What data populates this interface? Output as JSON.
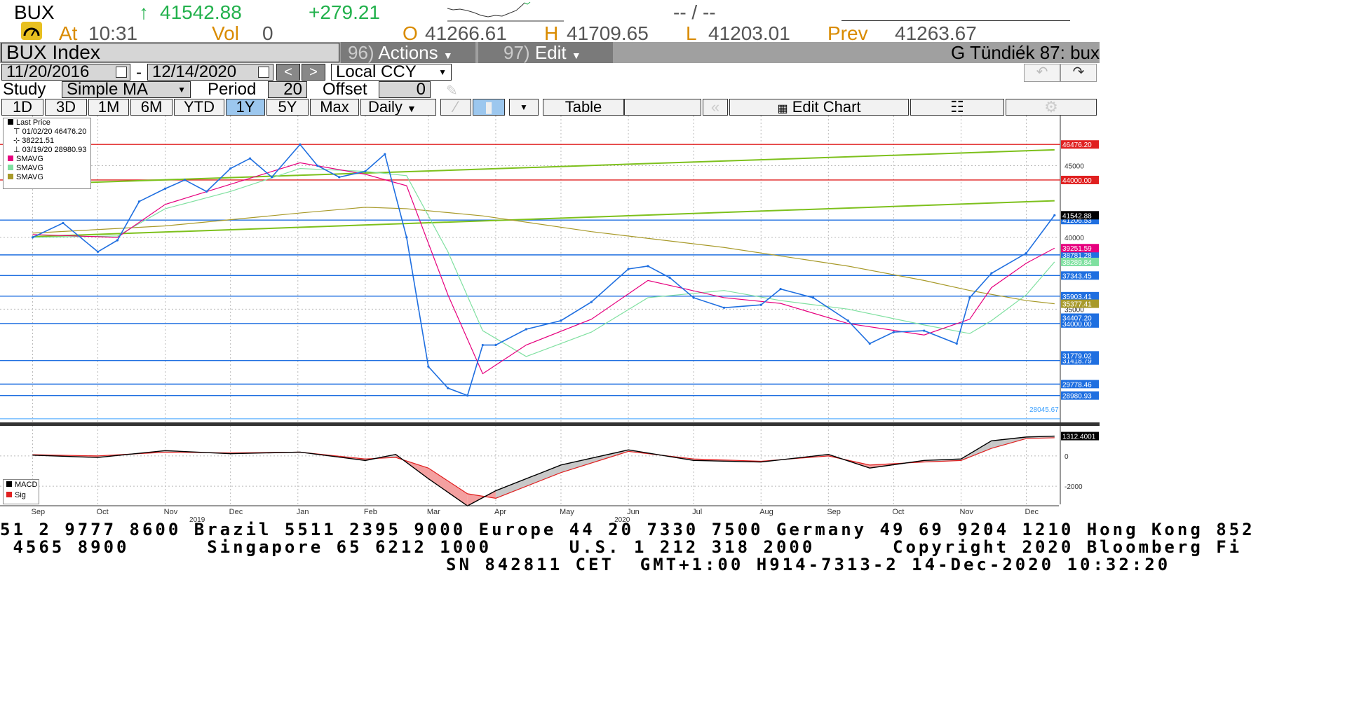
{
  "header": {
    "ticker": "BUX",
    "arrow": "↑",
    "last": "41542.88",
    "change": "+279.21",
    "dashes": "-- / --",
    "at_label": "At",
    "time": "10:31",
    "vol_label": "Vol",
    "vol": "0",
    "open_label": "O",
    "open": "41266.61",
    "high_label": "H",
    "high": "41709.65",
    "low_label": "L",
    "low": "41203.01",
    "prev_label": "Prev",
    "prev": "41263.67"
  },
  "toolbar": {
    "security": "BUX Index",
    "actions_num": "96)",
    "actions": "Actions",
    "edit_num": "97)",
    "edit": "Edit",
    "user": "G Tündiék 87: bux"
  },
  "dates": {
    "start": "11/20/2016",
    "sep": "-",
    "end": "12/14/2020",
    "prev_btn": "<",
    "next_btn": ">",
    "currency": "Local CCY"
  },
  "study": {
    "label": "Study",
    "value": "Simple MA",
    "period_label": "Period",
    "period": "20",
    "offset_label": "Offset",
    "offset": "0"
  },
  "ranges": {
    "items": [
      "1D",
      "3D",
      "1M",
      "6M",
      "YTD",
      "1Y",
      "5Y",
      "Max"
    ],
    "selected": "1Y",
    "frequency": "Daily",
    "table": "Table",
    "edit_chart": "Edit Chart"
  },
  "legend": {
    "title": "Last Price",
    "high_line": "01/02/20 46476.20",
    "avg_line": "38221.51",
    "low_line": "03/19/20 28980.93",
    "smas": [
      "SMAVG",
      "SMAVG",
      "SMAVG"
    ],
    "colors": {
      "sma1": "#e6007e",
      "sma2": "#7fe0a0",
      "sma3": "#a89a2a"
    }
  },
  "chart_data": [
    {
      "type": "line",
      "title": "BUX Index",
      "ylim": [
        27500,
        48000
      ],
      "y_ticks": [
        35000,
        40000,
        45000
      ],
      "y_ticks_labels": [
        "35000",
        "40000",
        "45000"
      ],
      "month_ticks": [
        "Sep",
        "Oct",
        "Nov",
        "Dec",
        "Jan",
        "Feb",
        "Mar",
        "Apr",
        "May",
        "Jun",
        "Jul",
        "Aug",
        "Sep",
        "Oct",
        "Nov",
        "Dec"
      ],
      "year_labels": [
        "2019",
        "2020"
      ],
      "grid": true,
      "series": [
        {
          "name": "Last Price",
          "color": "#1f6fe0",
          "x": [
            "2019-09-01",
            "2019-09-15",
            "2019-10-01",
            "2019-10-10",
            "2019-10-20",
            "2019-11-01",
            "2019-11-10",
            "2019-11-20",
            "2019-12-01",
            "2019-12-10",
            "2019-12-20",
            "2020-01-02",
            "2020-01-10",
            "2020-01-20",
            "2020-02-01",
            "2020-02-10",
            "2020-02-20",
            "2020-03-01",
            "2020-03-10",
            "2020-03-19",
            "2020-03-26",
            "2020-04-01",
            "2020-04-15",
            "2020-05-01",
            "2020-05-15",
            "2020-06-01",
            "2020-06-10",
            "2020-06-20",
            "2020-07-01",
            "2020-07-15",
            "2020-08-01",
            "2020-08-10",
            "2020-08-25",
            "2020-09-10",
            "2020-09-20",
            "2020-10-01",
            "2020-10-15",
            "2020-10-30",
            "2020-11-05",
            "2020-11-15",
            "2020-12-01",
            "2020-12-14"
          ],
          "values": [
            40000,
            41000,
            39000,
            39800,
            42500,
            43400,
            44000,
            43200,
            44800,
            45500,
            44200,
            46476,
            45000,
            44200,
            44600,
            45800,
            40000,
            31000,
            29500,
            28981,
            32500,
            32500,
            33600,
            34200,
            35500,
            37800,
            38000,
            37200,
            35800,
            35100,
            35300,
            36400,
            35800,
            34200,
            32600,
            33400,
            33500,
            32600,
            35800,
            37500,
            38900,
            41543
          ]
        },
        {
          "name": "SMAVG",
          "color": "#e6007e",
          "x": [
            "2019-09-01",
            "2019-10-10",
            "2019-11-01",
            "2019-12-01",
            "2020-01-02",
            "2020-02-01",
            "2020-02-20",
            "2020-03-10",
            "2020-03-26",
            "2020-04-15",
            "2020-05-15",
            "2020-06-10",
            "2020-07-15",
            "2020-08-10",
            "2020-09-10",
            "2020-10-15",
            "2020-11-05",
            "2020-11-15",
            "2020-12-01",
            "2020-12-14"
          ],
          "values": [
            40200,
            40000,
            42300,
            43700,
            45200,
            44400,
            43600,
            36000,
            30500,
            32500,
            34300,
            37000,
            35800,
            35400,
            34000,
            33200,
            34300,
            36500,
            38200,
            39252
          ]
        },
        {
          "name": "SMAVG",
          "color": "#7fe0a0",
          "x": [
            "2019-09-01",
            "2019-10-10",
            "2019-11-01",
            "2019-12-01",
            "2020-01-02",
            "2020-02-01",
            "2020-02-20",
            "2020-03-10",
            "2020-03-26",
            "2020-04-15",
            "2020-05-15",
            "2020-06-10",
            "2020-07-15",
            "2020-08-10",
            "2020-09-10",
            "2020-10-15",
            "2020-11-05",
            "2020-11-15",
            "2020-12-01",
            "2020-12-14"
          ],
          "values": [
            40000,
            40100,
            42000,
            43200,
            44800,
            44600,
            44300,
            39000,
            33500,
            31700,
            33400,
            35800,
            36300,
            35600,
            35000,
            33900,
            33300,
            34200,
            36000,
            38290
          ]
        },
        {
          "name": "SMAVG",
          "color": "#a89a2a",
          "x": [
            "2019-09-01",
            "2019-11-01",
            "2020-01-02",
            "2020-02-01",
            "2020-02-20",
            "2020-03-26",
            "2020-05-15",
            "2020-07-15",
            "2020-09-10",
            "2020-10-15",
            "2020-11-05",
            "2020-12-01",
            "2020-12-14"
          ],
          "values": [
            40300,
            40800,
            41700,
            42100,
            42000,
            41500,
            40400,
            39300,
            38000,
            37000,
            36300,
            35600,
            35377
          ]
        }
      ],
      "horizontal_levels": [
        {
          "value": 46476.2,
          "label": "46476.20",
          "color": "#e02020",
          "badge": "red"
        },
        {
          "value": 44000.0,
          "label": "44000.00",
          "color": "#e02020",
          "badge": "red"
        },
        {
          "value": 41206.53,
          "label": "41206.53",
          "color": "#1f6fe0",
          "badge": "blue"
        },
        {
          "value": 38781.28,
          "label": "38781.28",
          "color": "#1f6fe0",
          "badge": "blue"
        },
        {
          "value": 37343.45,
          "label": "37343.45",
          "color": "#1f6fe0",
          "badge": "blue"
        },
        {
          "value": 35903.41,
          "label": "35903.41",
          "color": "#1f6fe0",
          "badge": "blue"
        },
        {
          "value": 34000.0,
          "label": "34000.00",
          "color": "#1f6fe0",
          "badge": "blue"
        },
        {
          "value": 31418.79,
          "label": "31418.79",
          "color": "#1f6fe0",
          "badge": "blue"
        },
        {
          "value": 29778.46,
          "label": "29778.46",
          "color": "#1f6fe0",
          "badge": "blue"
        },
        {
          "value": 28980.93,
          "label": "28980.93",
          "color": "#1f6fe0",
          "badge": "blue"
        },
        {
          "value": 28045.67,
          "label": "28045.67",
          "color": "#3aa0ff",
          "badge": "text"
        }
      ],
      "extra_badges": [
        {
          "value": 41542.88,
          "label": "41542.88",
          "color": "#000000"
        },
        {
          "value": 39251.59,
          "label": "39251.59",
          "color": "#e6007e"
        },
        {
          "value": 38289.84,
          "label": "38289.84",
          "color": "#7fe0a0"
        },
        {
          "value": 35377.41,
          "label": "35377.41",
          "color": "#a89a2a"
        },
        {
          "value": 34407.2,
          "label": "34407.20",
          "color": "#1f6fe0"
        },
        {
          "value": 31779.02,
          "label": "31779.02",
          "color": "#1f6fe0"
        }
      ],
      "trendlines": [
        {
          "from": [
            "2019-09-01",
            40050
          ],
          "to": [
            "2020-12-14",
            42550
          ],
          "color": "#7dc01c"
        },
        {
          "from": [
            "2019-09-01",
            43700
          ],
          "to": [
            "2020-12-14",
            46100
          ],
          "color": "#7dc01c"
        }
      ]
    },
    {
      "type": "line",
      "title": "MACD",
      "ylim": [
        -3200,
        1800
      ],
      "y_ticks": [
        0,
        -2000
      ],
      "y_ticks_labels": [
        "0",
        "-2000"
      ],
      "series": [
        {
          "name": "MACD",
          "color": "#000000",
          "x": [
            "2019-09-01",
            "2019-10-01",
            "2019-11-01",
            "2019-12-01",
            "2020-01-02",
            "2020-02-01",
            "2020-02-15",
            "2020-03-01",
            "2020-03-19",
            "2020-04-01",
            "2020-05-01",
            "2020-06-01",
            "2020-07-01",
            "2020-08-01",
            "2020-09-01",
            "2020-09-20",
            "2020-10-15",
            "2020-11-01",
            "2020-11-15",
            "2020-12-01",
            "2020-12-14"
          ],
          "values": [
            50,
            -100,
            350,
            150,
            250,
            -300,
            100,
            -1500,
            -3300,
            -2300,
            -600,
            400,
            -300,
            -400,
            100,
            -800,
            -300,
            -200,
            1000,
            1250,
            1312
          ]
        },
        {
          "name": "Sig",
          "color": "#e02020",
          "x": [
            "2019-09-01",
            "2019-10-01",
            "2019-11-01",
            "2019-12-01",
            "2020-01-02",
            "2020-02-01",
            "2020-02-15",
            "2020-03-01",
            "2020-03-19",
            "2020-04-01",
            "2020-05-01",
            "2020-06-01",
            "2020-07-01",
            "2020-08-01",
            "2020-09-01",
            "2020-09-20",
            "2020-10-15",
            "2020-11-01",
            "2020-11-15",
            "2020-12-01",
            "2020-12-14"
          ],
          "values": [
            80,
            0,
            250,
            200,
            250,
            -200,
            -100,
            -800,
            -2500,
            -2800,
            -1100,
            300,
            -200,
            -350,
            0,
            -600,
            -400,
            -300,
            500,
            1150,
            1200
          ]
        }
      ],
      "badge": "1312.4001"
    }
  ],
  "macd_legend": {
    "macd": "MACD",
    "sig": "Sig"
  },
  "footer": {
    "line1": "51 2 9777 8600 Brazil 5511 2395 9000 Europe 44 20 7330 7500 Germany 49 69 9204 1210 Hong Kong 852",
    "line2": " 4565 8900      Singapore 65 6212 1000      U.S. 1 212 318 2000      Copyright 2020 Bloomberg Fi",
    "line3": "SN 842811 CET  GMT+1:00 H914-7313-2 14-Dec-2020 10:32:20"
  }
}
